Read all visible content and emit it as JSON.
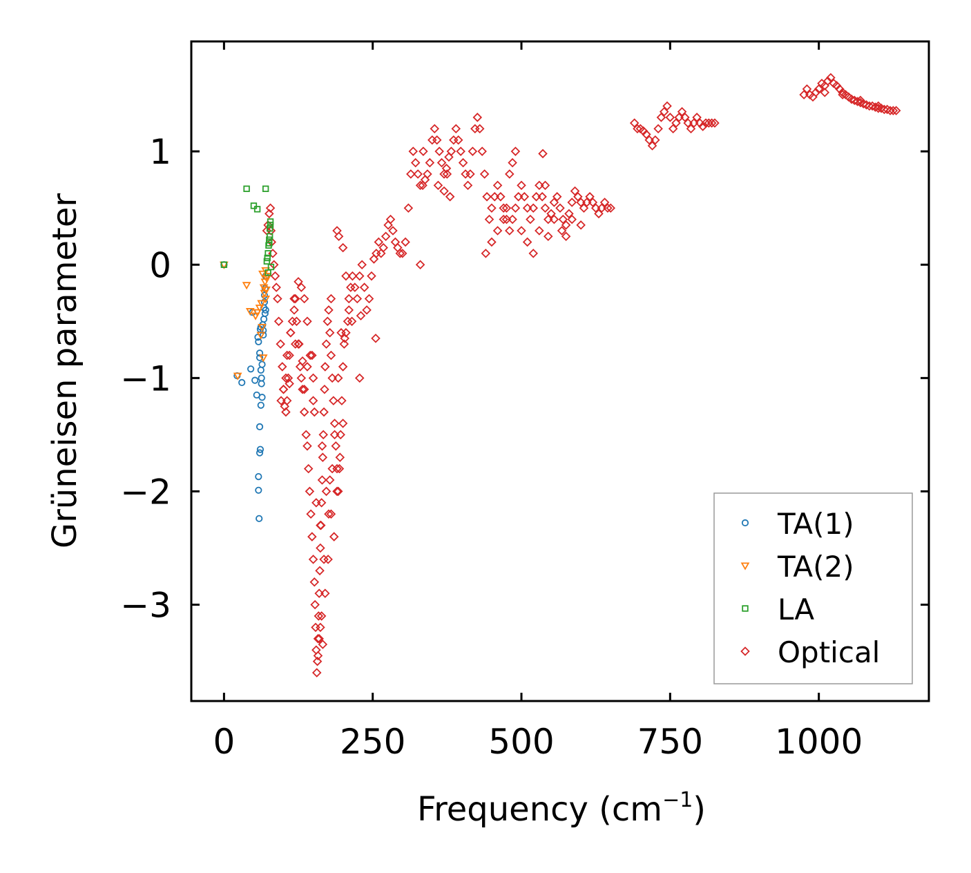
{
  "chart_data": {
    "type": "scatter",
    "xlabel": "Frequency (cm",
    "xlabel_sup": "−1",
    "xlabel_close": ")",
    "ylabel": "Grüneisen parameter",
    "xlim": [
      -55,
      1185
    ],
    "ylim": [
      -3.85,
      1.97
    ],
    "xticks": [
      0,
      250,
      500,
      750,
      1000
    ],
    "xtick_labels": [
      "0",
      "250",
      "500",
      "750",
      "1000"
    ],
    "yticks": [
      -3,
      -2,
      -1,
      0,
      1
    ],
    "ytick_labels": [
      "−3",
      "−2",
      "−1",
      "0",
      "1"
    ],
    "legend_position": "lower-right",
    "series": [
      {
        "name": "TA(1)",
        "marker": "circle",
        "color": "#1f77b4",
        "x": [
          0,
          22,
          30,
          45,
          48,
          52,
          55,
          57,
          58,
          60,
          60,
          61,
          62,
          62,
          63,
          64,
          65,
          66,
          66,
          67,
          67,
          68,
          68,
          69,
          69,
          70,
          70,
          60,
          58,
          58,
          60,
          61,
          59,
          62,
          63,
          64
        ],
        "y": [
          0.0,
          -0.98,
          -1.04,
          -0.92,
          -0.42,
          -1.02,
          -1.15,
          -0.64,
          -0.68,
          -0.78,
          -0.82,
          -0.57,
          -0.55,
          -0.93,
          -1.0,
          -1.17,
          -0.53,
          -0.62,
          -0.58,
          -0.48,
          -0.38,
          -0.33,
          -0.27,
          -0.21,
          -0.43,
          -0.4,
          -0.1,
          -1.43,
          -1.87,
          -1.99,
          -1.66,
          -1.63,
          -2.24,
          -1.24,
          -1.05,
          -0.88
        ]
      },
      {
        "name": "TA(2)",
        "marker": "triangle-down",
        "color": "#ff7f0e",
        "x": [
          0,
          23,
          38,
          44,
          53,
          56,
          60,
          63,
          65,
          67,
          68,
          69,
          70,
          71,
          72,
          73,
          66,
          64,
          62,
          70
        ],
        "y": [
          0.0,
          -0.98,
          -0.18,
          -0.41,
          -0.45,
          -0.42,
          -0.38,
          -0.34,
          -0.08,
          -0.2,
          -0.25,
          -0.15,
          -0.05,
          -0.22,
          -0.12,
          -0.1,
          -0.82,
          -0.55,
          -0.62,
          -0.3
        ]
      },
      {
        "name": "LA",
        "marker": "square",
        "color": "#2ca02c",
        "x": [
          0,
          38,
          50,
          56,
          70,
          72,
          74,
          75,
          76,
          76,
          77,
          77,
          78,
          78,
          79,
          74,
          73
        ],
        "y": [
          0.0,
          0.67,
          0.52,
          0.49,
          0.67,
          0.03,
          0.1,
          0.17,
          0.19,
          0.22,
          0.25,
          0.32,
          0.35,
          0.38,
          -0.02,
          -0.07,
          0.06
        ]
      },
      {
        "name": "Optical",
        "marker": "diamond",
        "color": "#d62728",
        "x": [
          72,
          74,
          76,
          78,
          79,
          80,
          82,
          84,
          86,
          88,
          90,
          92,
          95,
          98,
          100,
          102,
          104,
          106,
          108,
          110,
          112,
          115,
          118,
          120,
          122,
          125,
          128,
          130,
          132,
          135,
          138,
          140,
          142,
          144,
          146,
          148,
          150,
          152,
          153,
          154,
          155,
          156,
          157,
          158,
          159,
          160,
          161,
          162,
          163,
          164,
          165,
          166,
          167,
          168,
          169,
          170,
          172,
          174,
          176,
          178,
          180,
          182,
          184,
          186,
          188,
          190,
          192,
          194,
          196,
          198,
          200,
          202,
          205,
          208,
          210,
          213,
          216,
          220,
          224,
          228,
          232,
          236,
          240,
          244,
          248,
          252,
          256,
          260,
          264,
          268,
          272,
          276,
          280,
          284,
          288,
          292,
          296,
          300,
          305,
          310,
          314,
          318,
          322,
          326,
          330,
          334,
          338,
          342,
          346,
          350,
          354,
          358,
          362,
          366,
          370,
          374,
          378,
          382,
          386,
          390,
          394,
          398,
          402,
          406,
          410,
          414,
          418,
          422,
          426,
          430,
          434,
          438,
          442,
          446,
          450,
          455,
          460,
          465,
          470,
          475,
          480,
          485,
          490,
          495,
          500,
          505,
          510,
          515,
          520,
          525,
          530,
          535,
          540,
          545,
          550,
          555,
          560,
          565,
          570,
          575,
          580,
          585,
          590,
          595,
          600,
          605,
          610,
          615,
          620,
          625,
          630,
          635,
          640,
          645,
          650,
          690,
          695,
          700,
          705,
          710,
          715,
          720,
          725,
          730,
          735,
          740,
          745,
          750,
          755,
          760,
          765,
          770,
          775,
          780,
          785,
          790,
          795,
          800,
          805,
          810,
          815,
          820,
          825,
          975,
          980,
          985,
          990,
          995,
          1000,
          1005,
          1010,
          1015,
          1020,
          1025,
          1030,
          1035,
          1040,
          1045,
          1050,
          1055,
          1060,
          1065,
          1070,
          1075,
          1080,
          1085,
          1090,
          1095,
          1100,
          1105,
          1110,
          1115,
          1120,
          1125,
          1130,
          1100,
          1070,
          1040,
          1010,
          160,
          162,
          164,
          166,
          158,
          170,
          175,
          180,
          185,
          190,
          195,
          200,
          150,
          145,
          140,
          135,
          130,
          125,
          118,
          112,
          106,
          100,
          96,
          104,
          110,
          120,
          180,
          190,
          193,
          200,
          205,
          210,
          215,
          230,
          255,
          228,
          330,
          335,
          360,
          370,
          375,
          380,
          440,
          450,
          460,
          470,
          475,
          480,
          485,
          490,
          500,
          510,
          520,
          530,
          545,
          555,
          568,
          575,
          585,
          600,
          540,
          536,
          150,
          165,
          178,
          155,
          162,
          168,
          172,
          176,
          182,
          186,
          140,
          135,
          148,
          152,
          126,
          132,
          192,
          197,
          203
        ],
        "y": [
          0.3,
          0.35,
          0.45,
          0.5,
          0.3,
          0.2,
          0.1,
          0.0,
          -0.1,
          -0.2,
          -0.3,
          -0.5,
          -0.7,
          -0.9,
          -1.1,
          -1.25,
          -1.3,
          -1.2,
          -1.0,
          -0.8,
          -0.6,
          -0.5,
          -0.4,
          -0.3,
          -0.5,
          -0.7,
          -0.9,
          -1.0,
          -1.1,
          -1.3,
          -1.5,
          -1.6,
          -1.8,
          -2.0,
          -2.2,
          -2.4,
          -2.6,
          -2.8,
          -3.0,
          -3.2,
          -3.4,
          -3.6,
          -3.5,
          -3.3,
          -3.1,
          -2.9,
          -2.7,
          -2.5,
          -2.3,
          -2.1,
          -1.9,
          -1.7,
          -1.5,
          -1.3,
          -1.1,
          -0.9,
          -0.7,
          -0.5,
          -0.4,
          -0.6,
          -0.8,
          -1.0,
          -1.2,
          -1.4,
          -1.6,
          -1.8,
          -2.0,
          -1.8,
          -1.5,
          -1.2,
          -0.9,
          -0.7,
          -0.6,
          -0.5,
          -0.3,
          -0.2,
          -0.1,
          -0.2,
          -0.3,
          -0.1,
          0.0,
          -0.2,
          -0.4,
          -0.3,
          -0.1,
          0.05,
          0.1,
          0.2,
          0.1,
          0.15,
          0.25,
          0.35,
          0.4,
          0.3,
          0.2,
          0.15,
          0.1,
          0.1,
          0.2,
          0.5,
          0.8,
          1.0,
          0.9,
          0.8,
          0.7,
          0.7,
          0.75,
          0.8,
          0.9,
          1.1,
          1.2,
          1.1,
          1.0,
          0.9,
          0.8,
          0.85,
          0.95,
          1.0,
          1.1,
          1.2,
          1.1,
          1.0,
          0.9,
          0.8,
          0.7,
          0.8,
          1.0,
          1.2,
          1.3,
          1.2,
          1.0,
          0.8,
          0.6,
          0.4,
          0.5,
          0.6,
          0.7,
          0.6,
          0.5,
          0.4,
          0.3,
          0.4,
          0.5,
          0.6,
          0.7,
          0.6,
          0.5,
          0.4,
          0.5,
          0.6,
          0.7,
          0.6,
          0.5,
          0.4,
          0.45,
          0.55,
          0.6,
          0.5,
          0.4,
          0.35,
          0.45,
          0.55,
          0.65,
          0.6,
          0.55,
          0.5,
          0.55,
          0.6,
          0.55,
          0.5,
          0.45,
          0.5,
          0.55,
          0.5,
          0.5,
          1.25,
          1.2,
          1.2,
          1.18,
          1.15,
          1.1,
          1.05,
          1.1,
          1.2,
          1.3,
          1.35,
          1.4,
          1.3,
          1.2,
          1.25,
          1.3,
          1.35,
          1.3,
          1.25,
          1.2,
          1.25,
          1.3,
          1.25,
          1.22,
          1.25,
          1.25,
          1.25,
          1.25,
          1.5,
          1.55,
          1.5,
          1.48,
          1.52,
          1.55,
          1.6,
          1.58,
          1.62,
          1.65,
          1.6,
          1.58,
          1.55,
          1.52,
          1.5,
          1.48,
          1.46,
          1.45,
          1.44,
          1.43,
          1.42,
          1.41,
          1.4,
          1.4,
          1.39,
          1.38,
          1.38,
          1.37,
          1.37,
          1.36,
          1.36,
          1.36,
          1.4,
          1.45,
          1.5,
          1.52,
          -3.3,
          -3.2,
          -3.1,
          -3.35,
          -3.45,
          -2.9,
          -2.6,
          -2.2,
          -2.4,
          -2.0,
          -1.7,
          -1.4,
          -1.0,
          -0.8,
          -0.5,
          -0.3,
          -0.2,
          -0.15,
          -0.3,
          -0.6,
          -0.8,
          -1.1,
          -1.2,
          -1.0,
          -1.05,
          -0.7,
          -0.3,
          0.3,
          0.25,
          0.15,
          -0.1,
          -0.4,
          -0.5,
          -0.45,
          -0.65,
          -1.0,
          0.0,
          1.0,
          0.7,
          0.65,
          0.8,
          0.6,
          0.1,
          0.2,
          0.3,
          0.4,
          0.5,
          0.8,
          0.9,
          1.0,
          0.3,
          0.2,
          0.1,
          0.3,
          0.25,
          0.4,
          0.3,
          0.25,
          0.4,
          0.35,
          0.7,
          0.98,
          -1.2,
          -1.6,
          -1.9,
          -2.1,
          -2.3,
          -2.6,
          -2.0,
          -2.2,
          -1.8,
          -1.5,
          -0.9,
          -1.1,
          -0.8,
          -1.3,
          -0.7,
          -0.85,
          -1.0,
          -0.6,
          -0.65
        ]
      }
    ]
  }
}
